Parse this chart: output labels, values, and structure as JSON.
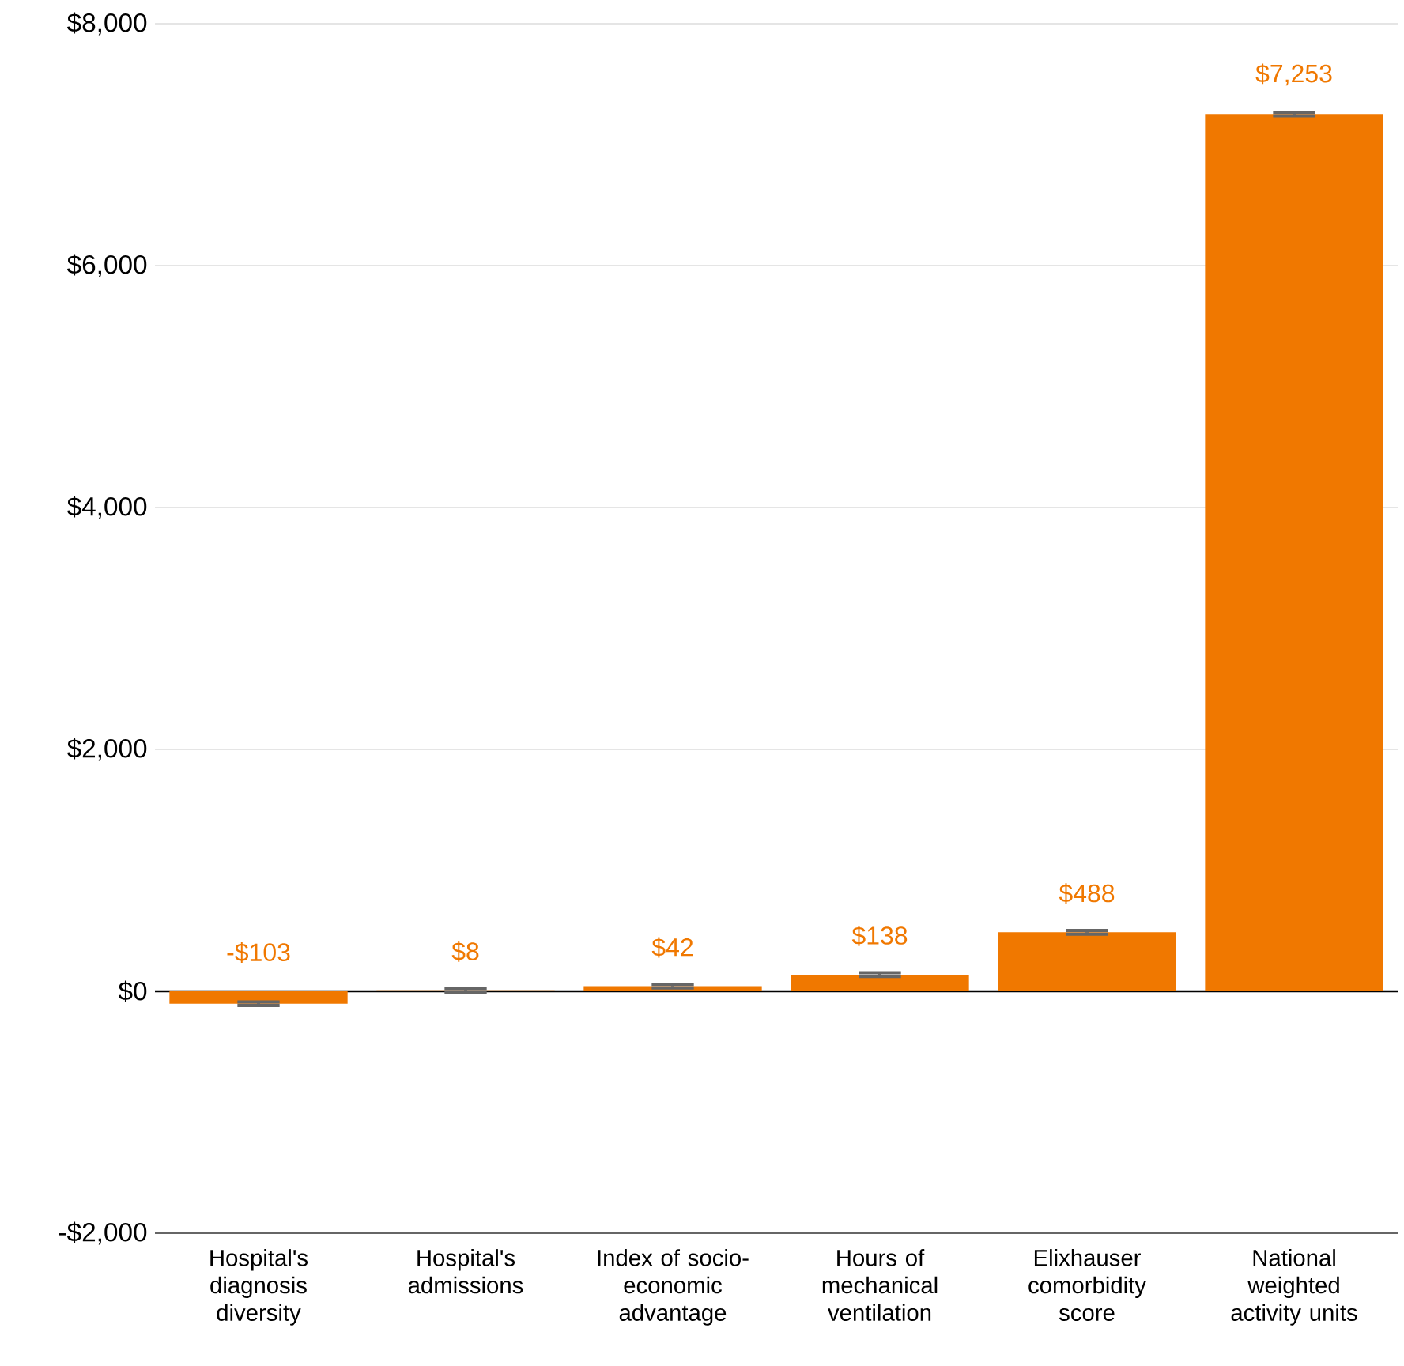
{
  "chart_data": {
    "type": "bar",
    "categories": [
      "Hospital's diagnosis diversity",
      "Hospital's admissions",
      "Index of socio-economic advantage",
      "Hours of mechanical ventilation",
      "Elixhauser comorbidity score",
      "National weighted activity units"
    ],
    "values": [
      -103,
      8,
      42,
      138,
      488,
      7253
    ],
    "errors": [
      15,
      15,
      15,
      15,
      15,
      15
    ],
    "value_labels": [
      "-$103",
      "$8",
      "$42",
      "$138",
      "$488",
      "$7,253"
    ],
    "color": "#f07800",
    "ylim": [
      -2000,
      8000
    ],
    "yticks": [
      {
        "value": -2000,
        "label": "-$2,000"
      },
      {
        "value": 0,
        "label": "$0"
      },
      {
        "value": 2000,
        "label": "$2,000"
      },
      {
        "value": 4000,
        "label": "$4,000"
      },
      {
        "value": 6000,
        "label": "$6,000"
      },
      {
        "value": 8000,
        "label": "$8,000"
      }
    ],
    "grid": "y"
  }
}
